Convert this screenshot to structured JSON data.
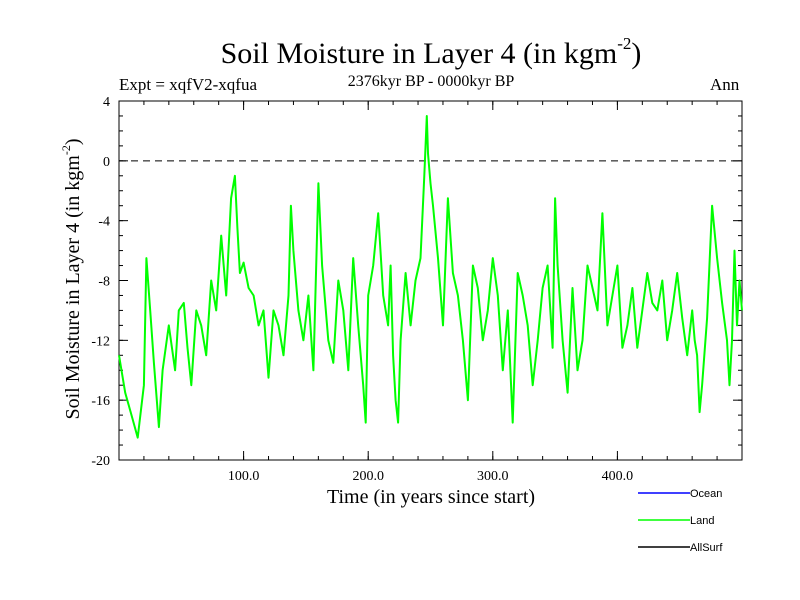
{
  "title": {
    "text": "Soil Moisture in Layer 4 (in kgm",
    "superscript": "-2",
    "close": ")"
  },
  "subtitle": {
    "experiment": "Expt = xqfV2-xqfua",
    "period": "2376kyr BP - 0000kyr BP",
    "season": "Ann"
  },
  "axes": {
    "xlabel": "Time (in years since start)",
    "ylabel": {
      "text": "Soil Moisture in Layer 4 (in kgm",
      "superscript": "-2",
      "close": ")"
    }
  },
  "colors": {
    "ocean": "#0000ff",
    "land": "#00ff00",
    "allsurf": "#000000",
    "zero_line": "#000000"
  },
  "chart_data": {
    "type": "line",
    "title": "Soil Moisture in Layer 4 (in kgm-2)",
    "xlabel": "Time (in years since start)",
    "ylabel": "Soil Moisture in Layer 4 (in kgm-2)",
    "xlim": [
      0,
      500
    ],
    "ylim": [
      -20,
      4
    ],
    "x_ticks": [
      100,
      200,
      300,
      400
    ],
    "x_tick_labels": [
      "100.0",
      "200.0",
      "300.0",
      "400.0"
    ],
    "y_ticks": [
      4,
      0,
      -4,
      -8,
      -12,
      -16,
      -20
    ],
    "y_tick_labels": [
      "4",
      "0",
      "-4",
      "-8",
      "-12",
      "-16",
      "-20"
    ],
    "reference_line": {
      "y": 0,
      "style": "dashed"
    },
    "legend": [
      "Ocean",
      "Land",
      "AllSurf"
    ],
    "series": [
      {
        "name": "Land",
        "color": "#00ff00",
        "x": [
          0,
          5,
          10,
          15,
          20,
          22,
          25,
          28,
          32,
          35,
          40,
          45,
          48,
          52,
          55,
          58,
          62,
          66,
          70,
          74,
          78,
          82,
          86,
          90,
          93,
          95,
          97,
          100,
          104,
          108,
          112,
          116,
          120,
          124,
          128,
          132,
          136,
          138,
          140,
          144,
          148,
          152,
          156,
          160,
          163,
          165,
          168,
          172,
          176,
          180,
          184,
          188,
          192,
          196,
          198,
          200,
          204,
          208,
          212,
          216,
          218,
          220,
          222,
          224,
          226,
          230,
          234,
          238,
          242,
          245,
          247,
          248,
          250,
          252,
          256,
          260,
          264,
          268,
          272,
          276,
          280,
          284,
          288,
          292,
          296,
          300,
          304,
          308,
          312,
          316,
          320,
          324,
          328,
          332,
          336,
          340,
          344,
          348,
          350,
          352,
          356,
          360,
          364,
          368,
          372,
          376,
          380,
          384,
          388,
          392,
          396,
          400,
          404,
          408,
          412,
          416,
          420,
          424,
          428,
          432,
          436,
          440,
          444,
          448,
          452,
          456,
          460,
          462,
          464,
          466,
          468,
          472,
          476,
          480,
          484,
          488,
          490,
          492,
          494,
          496,
          498,
          500
        ],
        "values": [
          -13,
          -15.5,
          -17,
          -18.5,
          -15,
          -6.5,
          -10,
          -13.5,
          -17.8,
          -14,
          -11,
          -14,
          -10,
          -9.5,
          -12.5,
          -15,
          -10,
          -11,
          -13,
          -8,
          -10,
          -5,
          -9,
          -2.5,
          -1,
          -4.5,
          -7.5,
          -6.8,
          -8.5,
          -9,
          -11,
          -10,
          -14.5,
          -10,
          -11,
          -13,
          -9,
          -3,
          -6,
          -10,
          -12,
          -9,
          -14,
          -1.5,
          -7,
          -9,
          -12,
          -13.5,
          -8,
          -10,
          -14,
          -6.5,
          -11,
          -15,
          -17.5,
          -9,
          -7,
          -3.5,
          -9,
          -11,
          -7,
          -13,
          -16,
          -17.5,
          -12,
          -7.5,
          -11,
          -8,
          -6.5,
          -1,
          3,
          0.5,
          -1.5,
          -3,
          -6.5,
          -11,
          -2.5,
          -7.5,
          -9,
          -12,
          -16,
          -7,
          -8.5,
          -12,
          -10,
          -6.5,
          -9,
          -14,
          -10,
          -17.5,
          -7.5,
          -9,
          -11,
          -15,
          -12,
          -8.5,
          -7,
          -12.5,
          -2.5,
          -7,
          -12,
          -15.5,
          -8.5,
          -14,
          -12,
          -7,
          -8.5,
          -10,
          -3.5,
          -11,
          -9,
          -7,
          -12.5,
          -11,
          -8.5,
          -12.5,
          -10,
          -7.5,
          -9.5,
          -10,
          -8,
          -12,
          -10,
          -7.5,
          -10.5,
          -13,
          -10,
          -12,
          -13,
          -16.8,
          -15,
          -10.5,
          -3,
          -6.5,
          -9.5,
          -12,
          -15,
          -12,
          -6,
          -11,
          -8,
          -10
        ]
      }
    ]
  }
}
